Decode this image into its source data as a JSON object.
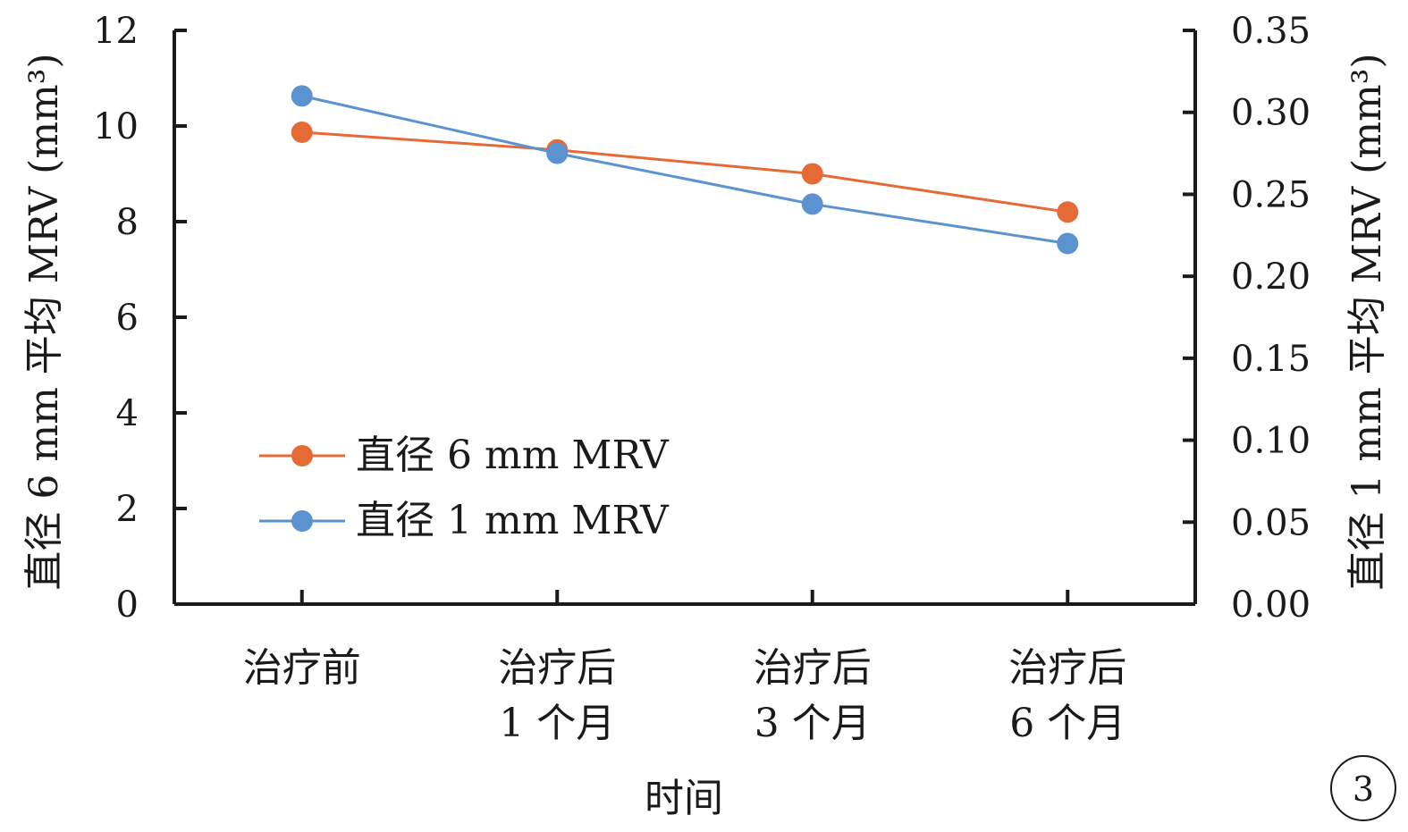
{
  "panel_label": "3",
  "colors": {
    "series_6mm": "#E56A35",
    "series_1mm": "#5B93D0",
    "axis": "#1a1a1a"
  },
  "chart_data": {
    "type": "line",
    "title": "",
    "xlabel": "时间",
    "ylabel_left": "直径 6 mm 平均 MRV (mm³)",
    "ylabel_right": "直径 1 mm 平均 MRV (mm³)",
    "categories": [
      [
        "治疗前"
      ],
      [
        "治疗后",
        "1 个月"
      ],
      [
        "治疗后",
        "3 个月"
      ],
      [
        "治疗后",
        "6 个月"
      ]
    ],
    "ylim_left": [
      0,
      12
    ],
    "yticks_left": [
      "0",
      "2",
      "4",
      "6",
      "8",
      "10",
      "12"
    ],
    "ylim_right": [
      0,
      0.35
    ],
    "yticks_right": [
      "0.00",
      "0.05",
      "0.10",
      "0.15",
      "0.20",
      "0.25",
      "0.30",
      "0.35"
    ],
    "legend_position": "lower-left",
    "series": [
      {
        "name": "直径 6 mm MRV",
        "axis": "left",
        "values": [
          9.87,
          9.5,
          9.0,
          8.2
        ]
      },
      {
        "name": "直径 1 mm MRV",
        "axis": "right",
        "values": [
          0.31,
          0.275,
          0.244,
          0.22
        ]
      }
    ]
  }
}
